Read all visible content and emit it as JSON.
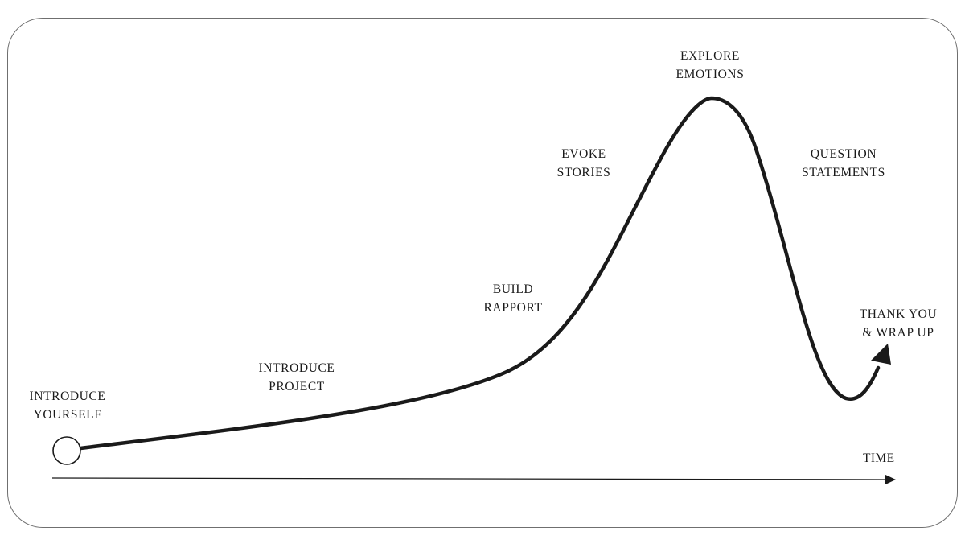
{
  "stages": [
    {
      "id": "introduce-yourself",
      "lines": [
        "INTRODUCE",
        "YOURSELF"
      ]
    },
    {
      "id": "introduce-project",
      "lines": [
        "INTRODUCE",
        "PROJECT"
      ]
    },
    {
      "id": "build-rapport",
      "lines": [
        "BUILD",
        "RAPPORT"
      ]
    },
    {
      "id": "evoke-stories",
      "lines": [
        "EVOKE",
        "STORIES"
      ]
    },
    {
      "id": "explore-emotions",
      "lines": [
        "EXPLORE",
        "EMOTIONS"
      ]
    },
    {
      "id": "question-statements",
      "lines": [
        "QUESTION",
        "STATEMENTS"
      ]
    },
    {
      "id": "thank-you-wrap-up",
      "lines": [
        "THANK YOU",
        "& WRAP UP"
      ]
    }
  ],
  "axis": {
    "label": "TIME"
  },
  "colors": {
    "line": "#1a1a1a",
    "frame": "#6f6f6f"
  }
}
